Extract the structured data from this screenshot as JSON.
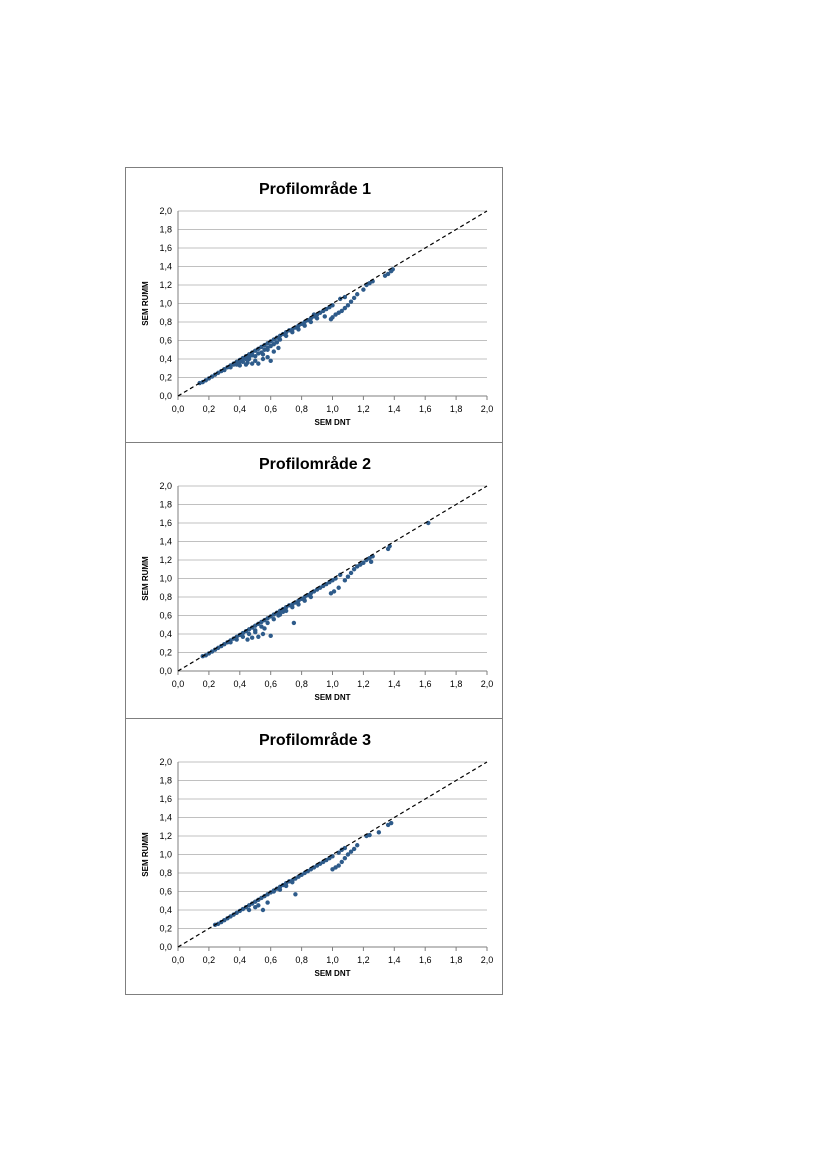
{
  "chart_data": [
    {
      "type": "scatter",
      "title": "Profilområde 1",
      "xlabel": "SEM DNT",
      "ylabel": "SEM RUMM",
      "xlim": [
        0,
        2
      ],
      "ylim": [
        0,
        2
      ],
      "xticks": [
        "0,0",
        "0,2",
        "0,4",
        "0,6",
        "0,8",
        "1,0",
        "1,2",
        "1,4",
        "1,6",
        "1,8",
        "2,0"
      ],
      "yticks": [
        "0,0",
        "0,2",
        "0,4",
        "0,6",
        "0,8",
        "1,0",
        "1,2",
        "1,4",
        "1,6",
        "1,8",
        "2,0"
      ],
      "grid": true,
      "reference_line": {
        "style": "dashed",
        "from": [
          0,
          0
        ],
        "to": [
          2,
          2
        ]
      },
      "marker_color": "#2e5b8a",
      "points": [
        [
          0.14,
          0.14
        ],
        [
          0.16,
          0.15
        ],
        [
          0.18,
          0.17
        ],
        [
          0.2,
          0.19
        ],
        [
          0.22,
          0.21
        ],
        [
          0.24,
          0.23
        ],
        [
          0.26,
          0.25
        ],
        [
          0.28,
          0.27
        ],
        [
          0.3,
          0.29
        ],
        [
          0.32,
          0.31
        ],
        [
          0.34,
          0.33
        ],
        [
          0.36,
          0.35
        ],
        [
          0.38,
          0.37
        ],
        [
          0.4,
          0.39
        ],
        [
          0.42,
          0.41
        ],
        [
          0.44,
          0.43
        ],
        [
          0.46,
          0.45
        ],
        [
          0.48,
          0.47
        ],
        [
          0.5,
          0.49
        ],
        [
          0.52,
          0.51
        ],
        [
          0.54,
          0.53
        ],
        [
          0.56,
          0.55
        ],
        [
          0.58,
          0.57
        ],
        [
          0.6,
          0.59
        ],
        [
          0.62,
          0.61
        ],
        [
          0.64,
          0.63
        ],
        [
          0.66,
          0.65
        ],
        [
          0.68,
          0.67
        ],
        [
          0.7,
          0.69
        ],
        [
          0.72,
          0.71
        ],
        [
          0.74,
          0.72
        ],
        [
          0.76,
          0.74
        ],
        [
          0.78,
          0.76
        ],
        [
          0.8,
          0.78
        ],
        [
          0.82,
          0.8
        ],
        [
          0.84,
          0.82
        ],
        [
          0.86,
          0.84
        ],
        [
          0.88,
          0.86
        ],
        [
          0.9,
          0.88
        ],
        [
          0.92,
          0.9
        ],
        [
          0.94,
          0.92
        ],
        [
          0.96,
          0.94
        ],
        [
          0.98,
          0.96
        ],
        [
          1.0,
          0.98
        ],
        [
          1.05,
          1.05
        ],
        [
          1.08,
          1.07
        ],
        [
          0.3,
          0.28
        ],
        [
          0.34,
          0.31
        ],
        [
          0.38,
          0.34
        ],
        [
          0.42,
          0.37
        ],
        [
          0.46,
          0.4
        ],
        [
          0.5,
          0.43
        ],
        [
          0.54,
          0.47
        ],
        [
          0.58,
          0.52
        ],
        [
          0.62,
          0.56
        ],
        [
          0.66,
          0.61
        ],
        [
          0.7,
          0.65
        ],
        [
          0.74,
          0.69
        ],
        [
          0.78,
          0.72
        ],
        [
          0.82,
          0.76
        ],
        [
          0.86,
          0.8
        ],
        [
          0.9,
          0.84
        ],
        [
          0.36,
          0.34
        ],
        [
          0.4,
          0.37
        ],
        [
          0.44,
          0.4
        ],
        [
          0.48,
          0.44
        ],
        [
          0.52,
          0.46
        ],
        [
          0.56,
          0.5
        ],
        [
          0.6,
          0.54
        ],
        [
          0.64,
          0.58
        ],
        [
          0.45,
          0.36
        ],
        [
          0.5,
          0.38
        ],
        [
          0.55,
          0.4
        ],
        [
          0.58,
          0.42
        ],
        [
          0.62,
          0.48
        ],
        [
          0.6,
          0.38
        ],
        [
          0.52,
          0.35
        ],
        [
          0.48,
          0.35
        ],
        [
          0.65,
          0.52
        ],
        [
          0.55,
          0.45
        ],
        [
          0.4,
          0.33
        ],
        [
          0.44,
          0.34
        ],
        [
          0.58,
          0.5
        ],
        [
          0.46,
          0.42
        ],
        [
          1.0,
          0.85
        ],
        [
          1.02,
          0.88
        ],
        [
          1.04,
          0.9
        ],
        [
          1.06,
          0.92
        ],
        [
          1.08,
          0.95
        ],
        [
          1.1,
          0.98
        ],
        [
          1.12,
          1.02
        ],
        [
          1.14,
          1.06
        ],
        [
          1.16,
          1.1
        ],
        [
          1.2,
          1.15
        ],
        [
          0.99,
          0.83
        ],
        [
          0.88,
          0.88
        ],
        [
          0.95,
          0.86
        ],
        [
          1.22,
          1.2
        ],
        [
          1.24,
          1.22
        ],
        [
          1.26,
          1.24
        ],
        [
          1.34,
          1.3
        ],
        [
          1.36,
          1.32
        ],
        [
          1.38,
          1.35
        ],
        [
          1.39,
          1.37
        ]
      ]
    },
    {
      "type": "scatter",
      "title": "Profilområde 2",
      "xlabel": "SEM DNT",
      "ylabel": "SEM RUMM",
      "xlim": [
        0,
        2
      ],
      "ylim": [
        0,
        2
      ],
      "xticks": [
        "0,0",
        "0,2",
        "0,4",
        "0,6",
        "0,8",
        "1,0",
        "1,2",
        "1,4",
        "1,6",
        "1,8",
        "2,0"
      ],
      "yticks": [
        "0,0",
        "0,2",
        "0,4",
        "0,6",
        "0,8",
        "1,0",
        "1,2",
        "1,4",
        "1,6",
        "1,8",
        "2,0"
      ],
      "grid": true,
      "reference_line": {
        "style": "dashed",
        "from": [
          0,
          0
        ],
        "to": [
          2,
          2
        ]
      },
      "marker_color": "#2e5b8a",
      "points": [
        [
          0.16,
          0.16
        ],
        [
          0.18,
          0.17
        ],
        [
          0.2,
          0.19
        ],
        [
          0.22,
          0.21
        ],
        [
          0.24,
          0.23
        ],
        [
          0.26,
          0.25
        ],
        [
          0.28,
          0.27
        ],
        [
          0.3,
          0.29
        ],
        [
          0.32,
          0.31
        ],
        [
          0.34,
          0.33
        ],
        [
          0.36,
          0.35
        ],
        [
          0.38,
          0.37
        ],
        [
          0.4,
          0.39
        ],
        [
          0.42,
          0.41
        ],
        [
          0.44,
          0.43
        ],
        [
          0.46,
          0.45
        ],
        [
          0.48,
          0.47
        ],
        [
          0.5,
          0.49
        ],
        [
          0.52,
          0.51
        ],
        [
          0.54,
          0.53
        ],
        [
          0.56,
          0.55
        ],
        [
          0.58,
          0.57
        ],
        [
          0.6,
          0.59
        ],
        [
          0.62,
          0.61
        ],
        [
          0.64,
          0.63
        ],
        [
          0.66,
          0.65
        ],
        [
          0.68,
          0.67
        ],
        [
          0.7,
          0.69
        ],
        [
          0.72,
          0.71
        ],
        [
          0.74,
          0.72
        ],
        [
          0.76,
          0.74
        ],
        [
          0.78,
          0.76
        ],
        [
          0.8,
          0.78
        ],
        [
          0.82,
          0.8
        ],
        [
          0.84,
          0.82
        ],
        [
          0.86,
          0.84
        ],
        [
          0.88,
          0.86
        ],
        [
          0.9,
          0.88
        ],
        [
          0.92,
          0.9
        ],
        [
          0.94,
          0.92
        ],
        [
          0.96,
          0.94
        ],
        [
          0.98,
          0.96
        ],
        [
          1.0,
          0.98
        ],
        [
          1.02,
          1.0
        ],
        [
          1.05,
          1.04
        ],
        [
          0.34,
          0.31
        ],
        [
          0.38,
          0.34
        ],
        [
          0.42,
          0.37
        ],
        [
          0.46,
          0.4
        ],
        [
          0.5,
          0.44
        ],
        [
          0.54,
          0.48
        ],
        [
          0.58,
          0.52
        ],
        [
          0.62,
          0.56
        ],
        [
          0.66,
          0.61
        ],
        [
          0.7,
          0.65
        ],
        [
          0.74,
          0.69
        ],
        [
          0.78,
          0.72
        ],
        [
          0.82,
          0.76
        ],
        [
          0.86,
          0.8
        ],
        [
          0.45,
          0.34
        ],
        [
          0.48,
          0.36
        ],
        [
          0.52,
          0.37
        ],
        [
          0.55,
          0.4
        ],
        [
          0.6,
          0.38
        ],
        [
          0.65,
          0.6
        ],
        [
          0.75,
          0.52
        ],
        [
          0.68,
          0.64
        ],
        [
          0.5,
          0.42
        ],
        [
          0.56,
          0.46
        ],
        [
          0.99,
          0.84
        ],
        [
          1.01,
          0.86
        ],
        [
          1.04,
          0.9
        ],
        [
          1.08,
          0.98
        ],
        [
          1.1,
          1.02
        ],
        [
          1.12,
          1.06
        ],
        [
          1.14,
          1.1
        ],
        [
          1.16,
          1.13
        ],
        [
          1.18,
          1.15
        ],
        [
          1.2,
          1.17
        ],
        [
          1.22,
          1.2
        ],
        [
          1.24,
          1.22
        ],
        [
          1.25,
          1.18
        ],
        [
          1.26,
          1.24
        ],
        [
          1.36,
          1.32
        ],
        [
          1.37,
          1.35
        ],
        [
          1.62,
          1.6
        ]
      ]
    },
    {
      "type": "scatter",
      "title": "Profilområde 3",
      "xlabel": "SEM DNT",
      "ylabel": "SEM RUMM",
      "xlim": [
        0,
        2
      ],
      "ylim": [
        0,
        2
      ],
      "xticks": [
        "0,0",
        "0,2",
        "0,4",
        "0,6",
        "0,8",
        "1,0",
        "1,2",
        "1,4",
        "1,6",
        "1,8",
        "2,0"
      ],
      "yticks": [
        "0,0",
        "0,2",
        "0,4",
        "0,6",
        "0,8",
        "1,0",
        "1,2",
        "1,4",
        "1,6",
        "1,8",
        "2,0"
      ],
      "grid": true,
      "reference_line": {
        "style": "dashed",
        "from": [
          0,
          0
        ],
        "to": [
          2,
          2
        ]
      },
      "marker_color": "#2e5b8a",
      "points": [
        [
          0.24,
          0.24
        ],
        [
          0.26,
          0.25
        ],
        [
          0.28,
          0.27
        ],
        [
          0.3,
          0.29
        ],
        [
          0.32,
          0.31
        ],
        [
          0.34,
          0.33
        ],
        [
          0.36,
          0.35
        ],
        [
          0.38,
          0.37
        ],
        [
          0.4,
          0.39
        ],
        [
          0.42,
          0.41
        ],
        [
          0.44,
          0.43
        ],
        [
          0.46,
          0.45
        ],
        [
          0.48,
          0.47
        ],
        [
          0.5,
          0.49
        ],
        [
          0.52,
          0.51
        ],
        [
          0.54,
          0.53
        ],
        [
          0.56,
          0.55
        ],
        [
          0.58,
          0.57
        ],
        [
          0.6,
          0.59
        ],
        [
          0.62,
          0.61
        ],
        [
          0.64,
          0.63
        ],
        [
          0.66,
          0.65
        ],
        [
          0.68,
          0.67
        ],
        [
          0.7,
          0.69
        ],
        [
          0.72,
          0.71
        ],
        [
          0.74,
          0.72
        ],
        [
          0.76,
          0.74
        ],
        [
          0.78,
          0.76
        ],
        [
          0.8,
          0.78
        ],
        [
          0.82,
          0.8
        ],
        [
          0.84,
          0.82
        ],
        [
          0.86,
          0.84
        ],
        [
          0.88,
          0.86
        ],
        [
          0.9,
          0.88
        ],
        [
          0.92,
          0.9
        ],
        [
          0.94,
          0.92
        ],
        [
          0.96,
          0.94
        ],
        [
          0.98,
          0.96
        ],
        [
          1.0,
          0.98
        ],
        [
          1.04,
          1.02
        ],
        [
          1.06,
          1.05
        ],
        [
          1.08,
          1.07
        ],
        [
          0.46,
          0.4
        ],
        [
          0.5,
          0.43
        ],
        [
          0.52,
          0.45
        ],
        [
          0.55,
          0.4
        ],
        [
          0.58,
          0.48
        ],
        [
          0.76,
          0.57
        ],
        [
          0.62,
          0.6
        ],
        [
          0.7,
          0.66
        ],
        [
          0.74,
          0.7
        ],
        [
          0.66,
          0.62
        ],
        [
          1.0,
          0.84
        ],
        [
          1.02,
          0.86
        ],
        [
          1.04,
          0.88
        ],
        [
          1.06,
          0.92
        ],
        [
          1.08,
          0.96
        ],
        [
          1.1,
          1.0
        ],
        [
          1.12,
          1.03
        ],
        [
          1.14,
          1.06
        ],
        [
          1.16,
          1.1
        ],
        [
          1.22,
          1.2
        ],
        [
          1.24,
          1.21
        ],
        [
          1.3,
          1.24
        ],
        [
          1.36,
          1.32
        ],
        [
          1.38,
          1.34
        ]
      ]
    }
  ]
}
